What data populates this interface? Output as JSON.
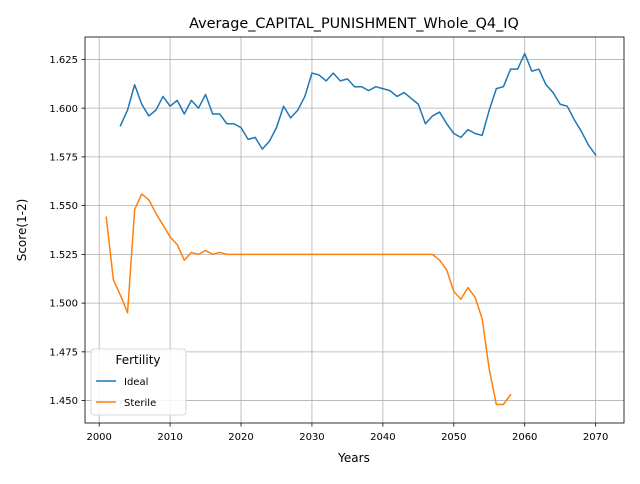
{
  "chart_data": {
    "type": "line",
    "title": "Average_CAPITAL_PUNISHMENT_Whole_Q4_IQ",
    "xlabel": "Years",
    "ylabel": "Score(1-2)",
    "xlim": [
      1998,
      2074
    ],
    "ylim": [
      1.4385,
      1.6365
    ],
    "xticks": [
      2000,
      2010,
      2020,
      2030,
      2040,
      2050,
      2060,
      2070
    ],
    "yticks": [
      1.45,
      1.475,
      1.5,
      1.525,
      1.55,
      1.575,
      1.6,
      1.625
    ],
    "ytick_labels": [
      "1.450",
      "1.475",
      "1.500",
      "1.525",
      "1.550",
      "1.575",
      "1.600",
      "1.625"
    ],
    "grid": true,
    "legend": {
      "title": "Fertility",
      "position": "lower-left"
    },
    "series": [
      {
        "name": "Ideal",
        "color": "#1f77b4",
        "x": [
          2003,
          2004,
          2005,
          2006,
          2007,
          2008,
          2009,
          2010,
          2011,
          2012,
          2013,
          2014,
          2015,
          2016,
          2017,
          2018,
          2019,
          2020,
          2021,
          2022,
          2023,
          2024,
          2025,
          2026,
          2027,
          2028,
          2029,
          2030,
          2031,
          2032,
          2033,
          2034,
          2035,
          2036,
          2037,
          2038,
          2039,
          2040,
          2041,
          2042,
          2043,
          2044,
          2045,
          2046,
          2047,
          2048,
          2049,
          2050,
          2051,
          2052,
          2053,
          2054,
          2055,
          2056,
          2057,
          2058,
          2059,
          2060,
          2061,
          2062,
          2063,
          2064,
          2065,
          2066,
          2067,
          2068,
          2069,
          2070
        ],
        "y": [
          1.591,
          1.599,
          1.612,
          1.602,
          1.596,
          1.599,
          1.606,
          1.601,
          1.604,
          1.597,
          1.604,
          1.6,
          1.607,
          1.597,
          1.597,
          1.592,
          1.592,
          1.59,
          1.584,
          1.585,
          1.579,
          1.583,
          1.59,
          1.601,
          1.595,
          1.599,
          1.606,
          1.618,
          1.617,
          1.614,
          1.618,
          1.614,
          1.615,
          1.611,
          1.611,
          1.609,
          1.611,
          1.61,
          1.609,
          1.606,
          1.608,
          1.605,
          1.602,
          1.592,
          1.596,
          1.598,
          1.592,
          1.587,
          1.585,
          1.589,
          1.587,
          1.586,
          1.599,
          1.61,
          1.611,
          1.62,
          1.62,
          1.628,
          1.619,
          1.62,
          1.612,
          1.608,
          1.602,
          1.601,
          1.594,
          1.588,
          1.581,
          1.576
        ]
      },
      {
        "name": "Sterile",
        "color": "#ff7f0e",
        "x": [
          2001,
          2002,
          2003,
          2004,
          2005,
          2006,
          2007,
          2008,
          2009,
          2010,
          2011,
          2012,
          2013,
          2014,
          2015,
          2016,
          2017,
          2018,
          2019,
          2020,
          2021,
          2022,
          2023,
          2024,
          2025,
          2026,
          2027,
          2028,
          2029,
          2030,
          2031,
          2032,
          2033,
          2034,
          2035,
          2036,
          2037,
          2038,
          2039,
          2040,
          2041,
          2042,
          2043,
          2044,
          2045,
          2046,
          2047,
          2048,
          2049,
          2050,
          2051,
          2052,
          2053,
          2054,
          2055,
          2056,
          2057,
          2058
        ],
        "y": [
          1.544,
          1.512,
          1.504,
          1.495,
          1.548,
          1.556,
          1.553,
          1.546,
          1.54,
          1.534,
          1.53,
          1.522,
          1.526,
          1.525,
          1.527,
          1.525,
          1.526,
          1.525,
          1.525,
          1.525,
          1.525,
          1.525,
          1.525,
          1.525,
          1.525,
          1.525,
          1.525,
          1.525,
          1.525,
          1.525,
          1.525,
          1.525,
          1.525,
          1.525,
          1.525,
          1.525,
          1.525,
          1.525,
          1.525,
          1.525,
          1.525,
          1.525,
          1.525,
          1.525,
          1.525,
          1.525,
          1.525,
          1.522,
          1.517,
          1.506,
          1.502,
          1.508,
          1.503,
          1.492,
          1.466,
          1.448,
          1.448,
          1.453
        ]
      }
    ]
  }
}
